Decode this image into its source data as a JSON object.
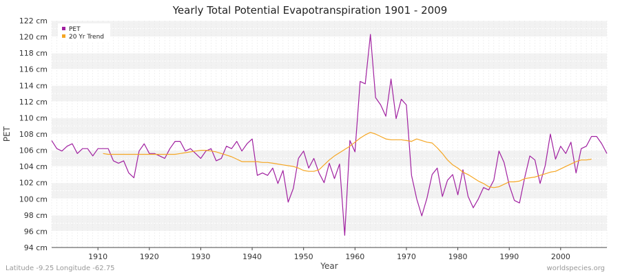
{
  "chart_data": {
    "type": "line",
    "title": "Yearly Total Potential Evapotranspiration 1901 - 2009",
    "xlabel": "Year",
    "ylabel": "PET",
    "xlim": [
      1901,
      2009
    ],
    "ylim": [
      94,
      122
    ],
    "y_unit": "cm",
    "x_ticks": [
      1910,
      1920,
      1930,
      1940,
      1950,
      1960,
      1970,
      1980,
      1990,
      2000
    ],
    "y_ticks": [
      94,
      96,
      98,
      100,
      102,
      104,
      106,
      108,
      110,
      112,
      114,
      116,
      118,
      120,
      122
    ],
    "y_tick_labels": [
      "94 cm",
      "96 cm",
      "98 cm",
      "100 cm",
      "102 cm",
      "104 cm",
      "106 cm",
      "108 cm",
      "110 cm",
      "112 cm",
      "114 cm",
      "116 cm",
      "118 cm",
      "120 cm",
      "122 cm"
    ],
    "legend_position": "top-left",
    "series": [
      {
        "name": "PET",
        "color": "#a020a0",
        "x_start": 1901,
        "values": [
          107.2,
          106.2,
          105.9,
          106.5,
          106.8,
          105.6,
          106.2,
          106.2,
          105.3,
          106.2,
          106.2,
          106.2,
          104.7,
          104.4,
          104.7,
          103.2,
          102.6,
          105.9,
          106.8,
          105.6,
          105.6,
          105.3,
          105.0,
          106.2,
          107.1,
          107.1,
          105.9,
          106.2,
          105.6,
          105.0,
          105.9,
          106.2,
          104.7,
          105.0,
          106.5,
          106.2,
          107.1,
          105.9,
          106.8,
          107.4,
          102.9,
          103.2,
          102.9,
          103.8,
          101.9,
          103.5,
          99.6,
          101.3,
          105.0,
          105.9,
          103.8,
          105.0,
          103.2,
          102.0,
          104.4,
          102.5,
          104.3,
          95.5,
          107.2,
          105.8,
          114.5,
          114.2,
          120.3,
          112.5,
          111.6,
          110.2,
          114.8,
          109.9,
          112.3,
          111.6,
          102.9,
          100.0,
          97.9,
          100.1,
          103.0,
          103.8,
          100.3,
          102.3,
          103.0,
          100.5,
          103.6,
          100.3,
          98.9,
          100.0,
          101.4,
          101.1,
          102.3,
          105.9,
          104.5,
          101.7,
          99.8,
          99.5,
          102.6,
          105.3,
          104.8,
          101.9,
          104.1,
          108.0,
          104.9,
          106.5,
          105.6,
          107.0,
          103.2,
          106.2,
          106.5,
          107.7,
          107.7,
          106.8,
          105.6
        ]
      },
      {
        "name": "20 Yr Trend",
        "color": "#f5a623",
        "x_start": 1911,
        "values": [
          105.6,
          105.5,
          105.5,
          105.5,
          105.5,
          105.5,
          105.5,
          105.5,
          105.5,
          105.5,
          105.5,
          105.5,
          105.5,
          105.5,
          105.5,
          105.6,
          105.7,
          105.8,
          105.9,
          106.0,
          106.0,
          105.9,
          105.8,
          105.6,
          105.4,
          105.2,
          104.9,
          104.6,
          104.6,
          104.6,
          104.6,
          104.5,
          104.5,
          104.4,
          104.3,
          104.2,
          104.1,
          104.0,
          103.8,
          103.5,
          103.4,
          103.4,
          103.6,
          104.2,
          104.8,
          105.3,
          105.7,
          106.1,
          106.5,
          107.0,
          107.5,
          107.9,
          108.2,
          108.0,
          107.7,
          107.4,
          107.3,
          107.3,
          107.3,
          107.2,
          107.1,
          107.4,
          107.2,
          107.0,
          106.9,
          106.3,
          105.6,
          104.8,
          104.2,
          103.8,
          103.3,
          103.0,
          102.6,
          102.2,
          101.9,
          101.5,
          101.4,
          101.5,
          101.8,
          102.1,
          102.1,
          102.2,
          102.5,
          102.6,
          102.7,
          102.9,
          103.1,
          103.3,
          103.4,
          103.7,
          104.0,
          104.3,
          104.6,
          104.8,
          104.8,
          104.9
        ]
      }
    ]
  },
  "footer": {
    "location": "Latitude -9.25 Longitude -62.75",
    "source": "worldspecies.org"
  }
}
